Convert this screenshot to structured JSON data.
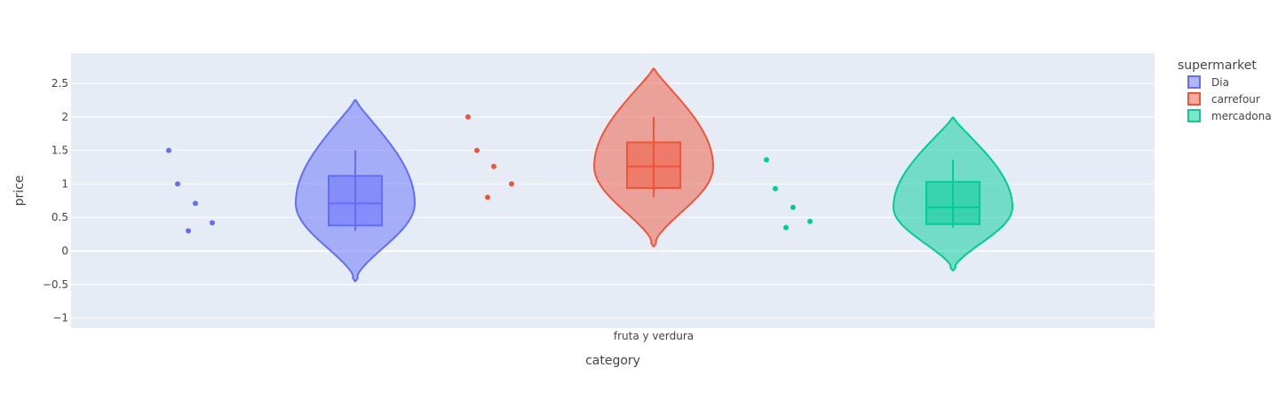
{
  "chart_data": {
    "type": "violin",
    "xlabel": "category",
    "ylabel": "price",
    "categories": [
      "fruta y verdura"
    ],
    "yticks": [
      -1,
      -0.5,
      0,
      0.5,
      1,
      1.5,
      2,
      2.5
    ],
    "ytick_labels": [
      "−1",
      "−0.5",
      "0",
      "0.5",
      "1",
      "1.5",
      "2",
      "2.5"
    ],
    "ylim": [
      -1.15,
      2.95
    ],
    "grid": true,
    "legend": {
      "title": "supermarket",
      "placement": "top-right"
    },
    "series": [
      {
        "name": "Dia",
        "color": "#636efa",
        "points": [
          1.5,
          1.0,
          0.3,
          0.71,
          0.42
        ],
        "box": {
          "q1": 0.38,
          "median": 0.71,
          "q3": 1.12,
          "lower_fence": 0.3,
          "upper_fence": 1.5
        },
        "violin_range": [
          -0.45,
          2.25
        ]
      },
      {
        "name": "carrefour",
        "color": "#ef553b",
        "points": [
          2.0,
          1.5,
          0.8,
          1.26,
          1.0
        ],
        "box": {
          "q1": 0.94,
          "median": 1.26,
          "q3": 1.62,
          "lower_fence": 0.8,
          "upper_fence": 2.0
        },
        "violin_range": [
          0.07,
          2.72
        ]
      },
      {
        "name": "mercadona",
        "color": "#00cc96",
        "points": [
          1.36,
          0.93,
          0.35,
          0.65,
          0.44
        ],
        "box": {
          "q1": 0.4,
          "median": 0.65,
          "q3": 1.03,
          "lower_fence": 0.35,
          "upper_fence": 1.36
        },
        "violin_range": [
          -0.29,
          1.99
        ]
      }
    ]
  }
}
